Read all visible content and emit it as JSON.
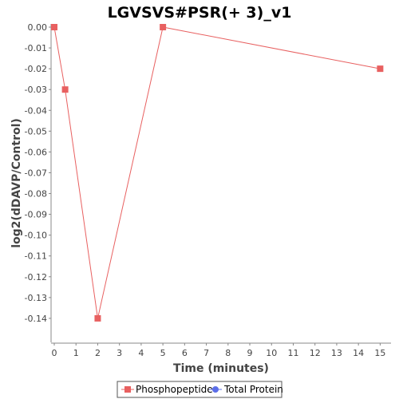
{
  "chart_data": {
    "type": "line",
    "title": "LGVSVS#PSR(+ 3)_v1",
    "xlabel": "Time (minutes)",
    "ylabel": "log2(dDAVP/Control)",
    "xlim": [
      0,
      15.5
    ],
    "ylim": [
      -0.15,
      0.0
    ],
    "x_ticks": [
      0,
      1,
      2,
      3,
      4,
      5,
      6,
      7,
      8,
      9,
      10,
      11,
      12,
      13,
      14,
      15
    ],
    "y_ticks": [
      0.0,
      -0.01,
      -0.02,
      -0.03,
      -0.04,
      -0.05,
      -0.06,
      -0.07,
      -0.08,
      -0.09,
      -0.1,
      -0.11,
      -0.12,
      -0.13,
      -0.14
    ],
    "y_tick_labels": [
      "0.00",
      "-0.01",
      "-0.02",
      "-0.03",
      "-0.04",
      "-0.05",
      "-0.06",
      "-0.07",
      "-0.08",
      "-0.09",
      "-0.10",
      "-0.11",
      "-0.12",
      "-0.13",
      "-0.14"
    ],
    "grid": false,
    "legend_position": "bottom",
    "series": [
      {
        "name": "Phosphopeptide",
        "color": "#e86060",
        "marker": "square",
        "x": [
          0,
          0.5,
          2,
          5,
          15
        ],
        "y": [
          0.0,
          -0.03,
          -0.14,
          0.0,
          -0.02
        ]
      },
      {
        "name": "Total Protein",
        "color": "#5b6ee8",
        "marker": "circle",
        "x": [],
        "y": []
      }
    ]
  }
}
